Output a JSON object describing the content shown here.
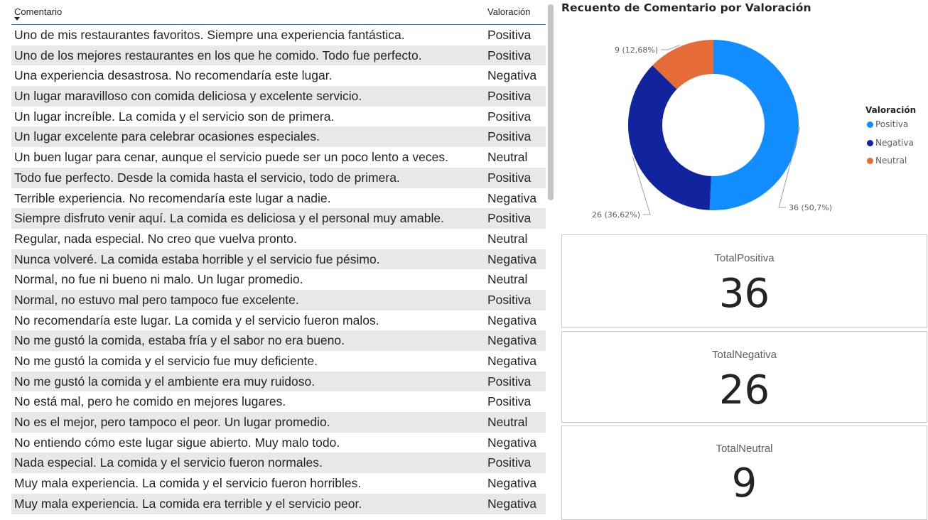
{
  "table": {
    "headers": {
      "comment": "Comentario",
      "valuation": "Valoración"
    },
    "rows": [
      {
        "comment": "Uno de mis restaurantes favoritos. Siempre una experiencia fantástica.",
        "valuation": "Positiva"
      },
      {
        "comment": "Uno de los mejores restaurantes en los que he comido. Todo fue perfecto.",
        "valuation": "Positiva"
      },
      {
        "comment": "Una experiencia desastrosa. No recomendaría este lugar.",
        "valuation": "Negativa"
      },
      {
        "comment": "Un lugar maravilloso con comida deliciosa y excelente servicio.",
        "valuation": "Positiva"
      },
      {
        "comment": "Un lugar increíble. La comida y el servicio son de primera.",
        "valuation": "Positiva"
      },
      {
        "comment": "Un lugar excelente para celebrar ocasiones especiales.",
        "valuation": "Positiva"
      },
      {
        "comment": "Un buen lugar para cenar, aunque el servicio puede ser un poco lento a veces.",
        "valuation": "Neutral"
      },
      {
        "comment": "Todo fue perfecto. Desde la comida hasta el servicio, todo de primera.",
        "valuation": "Positiva"
      },
      {
        "comment": "Terrible experiencia. No recomendaría este lugar a nadie.",
        "valuation": "Negativa"
      },
      {
        "comment": "Siempre disfruto venir aquí. La comida es deliciosa y el personal muy amable.",
        "valuation": "Positiva"
      },
      {
        "comment": "Regular, nada especial. No creo que vuelva pronto.",
        "valuation": "Neutral"
      },
      {
        "comment": "Nunca volveré. La comida estaba horrible y el servicio fue pésimo.",
        "valuation": "Negativa"
      },
      {
        "comment": "Normal, no fue ni bueno ni malo. Un lugar promedio.",
        "valuation": "Neutral"
      },
      {
        "comment": "Normal, no estuvo mal pero tampoco fue excelente.",
        "valuation": "Positiva"
      },
      {
        "comment": "No recomendaría este lugar. La comida y el servicio fueron malos.",
        "valuation": "Negativa"
      },
      {
        "comment": "No me gustó la comida, estaba fría y el sabor no era bueno.",
        "valuation": "Negativa"
      },
      {
        "comment": "No me gustó la comida y el servicio fue muy deficiente.",
        "valuation": "Negativa"
      },
      {
        "comment": "No me gustó la comida y el ambiente era muy ruidoso.",
        "valuation": "Positiva"
      },
      {
        "comment": "No está mal, pero he comido en mejores lugares.",
        "valuation": "Positiva"
      },
      {
        "comment": "No es el mejor, pero tampoco el peor. Un lugar promedio.",
        "valuation": "Neutral"
      },
      {
        "comment": "No entiendo cómo este lugar sigue abierto. Muy malo todo.",
        "valuation": "Negativa"
      },
      {
        "comment": "Nada especial. La comida y el servicio fueron normales.",
        "valuation": "Positiva"
      },
      {
        "comment": "Muy mala experiencia. La comida y el servicio fueron horribles.",
        "valuation": "Negativa"
      },
      {
        "comment": "Muy mala experiencia. La comida era terrible y el servicio peor.",
        "valuation": "Negativa"
      }
    ],
    "sort_icon": "sort-descending-icon"
  },
  "chart_data": {
    "type": "pie",
    "title": "Recuento de Comentario por Valoración",
    "legend_title": "Valoración",
    "legend_position": "right",
    "slices": [
      {
        "name": "Positiva",
        "value": 36,
        "label": "36 (50,7%)",
        "color": "#118dff"
      },
      {
        "name": "Negativa",
        "value": 26,
        "label": "26 (36,62%)",
        "color": "#12239e"
      },
      {
        "name": "Neutral",
        "value": 9,
        "label": "9 (12,68%)",
        "color": "#e66c37"
      }
    ]
  },
  "cards": [
    {
      "label": "TotalPositiva",
      "value": "36"
    },
    {
      "label": "TotalNegativa",
      "value": "26"
    },
    {
      "label": "TotalNeutral",
      "value": "9"
    }
  ]
}
